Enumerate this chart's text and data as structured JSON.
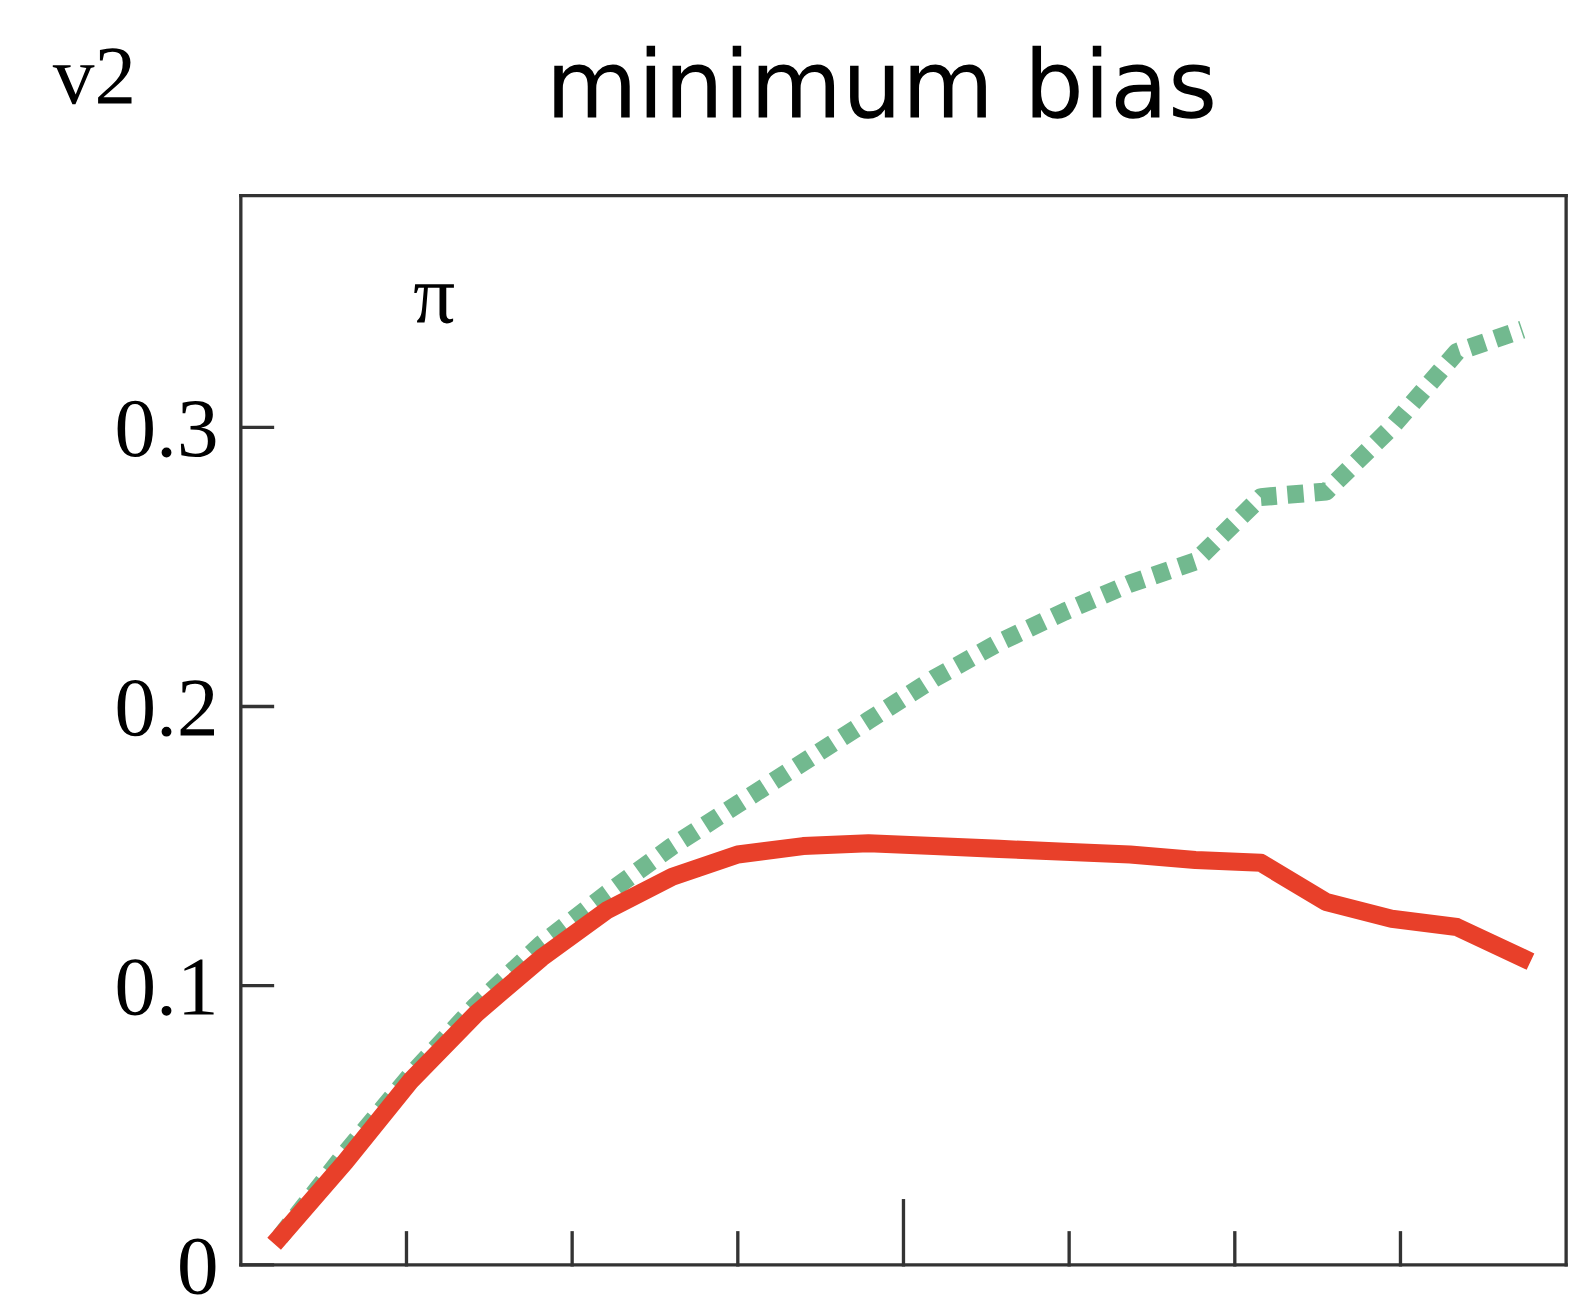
{
  "chart_data": {
    "type": "line",
    "title": "minimum bias",
    "ylabel": "v2",
    "annotations": [
      "π"
    ],
    "categories": [
      null,
      null,
      null,
      null,
      null,
      null,
      null,
      null,
      null,
      null,
      null,
      null,
      null,
      null,
      null,
      null,
      null,
      null,
      null,
      null
    ],
    "ylim": [
      0,
      0.383
    ],
    "yticks": [
      0,
      0.1,
      0.2,
      0.3
    ],
    "grid": false,
    "legend": false,
    "tick_labels": "y",
    "series": [
      {
        "line_style": "dotted",
        "color": "#72b98f",
        "values": [
          0.01,
          0.04,
          0.068,
          0.093,
          0.115,
          0.133,
          0.15,
          0.165,
          0.18,
          0.195,
          0.21,
          0.223,
          0.234,
          0.244,
          0.252,
          0.275,
          0.277,
          0.3,
          0.327,
          0.335
        ]
      },
      {
        "line_style": "solid",
        "color": "#e8402a",
        "values": [
          0.01,
          0.037,
          0.066,
          0.09,
          0.11,
          0.127,
          0.139,
          0.147,
          0.15,
          0.151,
          0.15,
          0.149,
          0.148,
          0.147,
          0.145,
          0.144,
          0.13,
          0.124,
          0.121,
          0.11
        ]
      }
    ]
  }
}
